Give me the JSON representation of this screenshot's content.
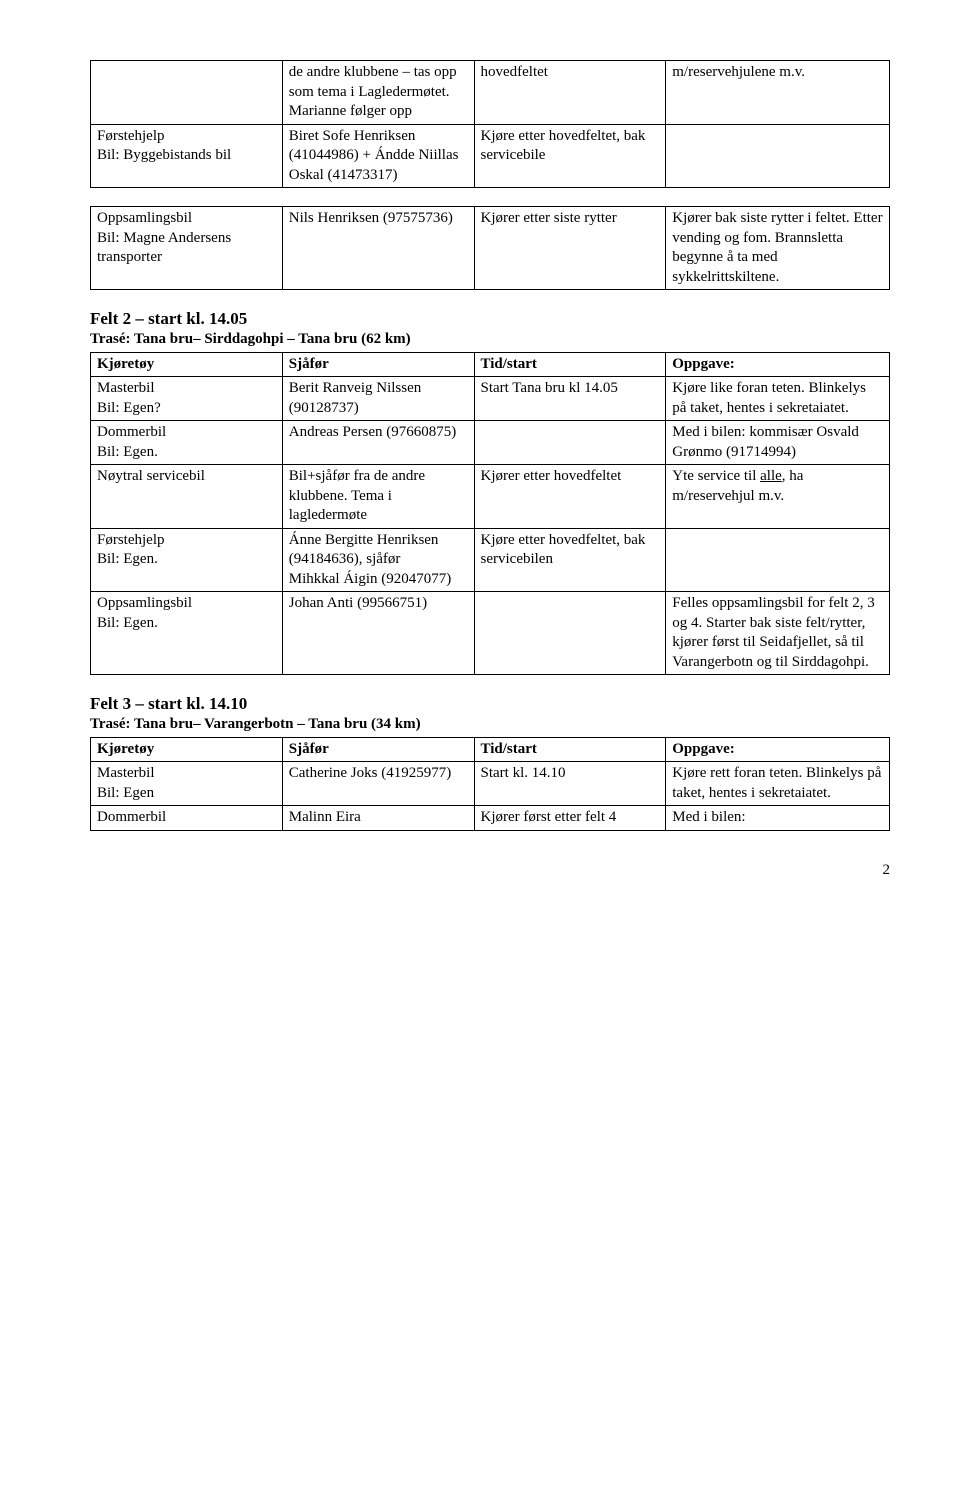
{
  "table1": {
    "rows": [
      {
        "c1": "",
        "c2": "de andre klubbene – tas opp som tema i Lagledermøtet. Marianne følger opp",
        "c3": "hovedfeltet",
        "c4": "m/reservehjulene m.v."
      },
      {
        "c1": "Førstehjelp\nBil: Byggebistands bil",
        "c2": "Biret Sofe Henriksen (41044986) + Ándde Niillas Oskal (41473317)",
        "c3": "Kjøre etter hovedfeltet, bak servicebile",
        "c4": ""
      }
    ]
  },
  "table1b": {
    "rows": [
      {
        "c1": "Oppsamlingsbil\nBil: Magne Andersens transporter",
        "c2": "Nils Henriksen (97575736)",
        "c3": "Kjører etter siste rytter",
        "c4": "Kjører bak siste rytter i feltet. Etter vending og fom. Brannsletta begynne å ta med sykkelrittskiltene."
      }
    ]
  },
  "section2": {
    "title": "Felt 2 – start kl. 14.05",
    "sub": "Trasé: Tana bru– Sirddagohpi – Tana bru (62 km)"
  },
  "table2": {
    "headers": {
      "c1": "Kjøretøy",
      "c2": "Sjåfør",
      "c3": "Tid/start",
      "c4": "Oppgave:"
    },
    "rows": [
      {
        "c1": "Masterbil\nBil: Egen?",
        "c2": "Berit Ranveig Nilssen (90128737)",
        "c3": "Start Tana bru kl 14.05",
        "c4": "Kjøre like foran teten. Blinkelys på taket, hentes i sekretaiatet."
      },
      {
        "c1": "Dommerbil\nBil: Egen.",
        "c2": "Andreas Persen (97660875)",
        "c3": "",
        "c4": "Med i bilen: kommisær Osvald Grønmo (91714994)"
      },
      {
        "c1": "Nøytral servicebil",
        "c2": "Bil+sjåfør fra de andre klubbene. Tema i lagledermøte",
        "c3": "Kjører etter hovedfeltet",
        "c4_pre": "Yte service til ",
        "c4_u": "alle",
        "c4_post": ", ha m/reservehjul m.v."
      },
      {
        "c1": "Førstehjelp\nBil: Egen.",
        "c2": "Ánne Bergitte Henriksen (94184636), sjåfør\nMihkkal Áigin (92047077)",
        "c3": "Kjøre etter hovedfeltet, bak servicebilen",
        "c4": ""
      },
      {
        "c1": "Oppsamlingsbil\nBil: Egen.",
        "c2": "Johan Anti (99566751)",
        "c3": "",
        "c4": "Felles oppsamlingsbil for felt 2, 3 og 4. Starter bak siste felt/rytter, kjører først til Seidafjellet, så til Varangerbotn og til Sirddagohpi."
      }
    ]
  },
  "section3": {
    "title": "Felt 3 – start kl. 14.10",
    "sub": "Trasé: Tana bru– Varangerbotn – Tana bru (34 km)"
  },
  "table3": {
    "headers": {
      "c1": "Kjøretøy",
      "c2": "Sjåfør",
      "c3": "Tid/start",
      "c4": "Oppgave:"
    },
    "rows": [
      {
        "c1": "Masterbil\nBil: Egen",
        "c2": "Catherine Joks (41925977)",
        "c3": "Start kl. 14.10",
        "c4": "Kjøre rett foran teten. Blinkelys på taket, hentes i sekretaiatet."
      },
      {
        "c1": "Dommerbil",
        "c2": "Malinn Eira",
        "c3": "Kjører først etter felt 4",
        "c4": "Med i bilen:"
      }
    ]
  },
  "pagenum": "2"
}
